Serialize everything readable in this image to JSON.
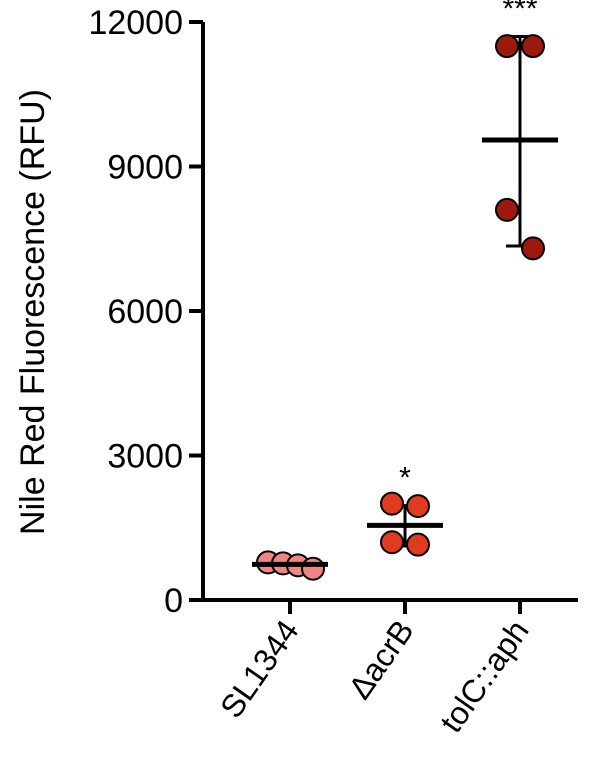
{
  "chart_data": {
    "type": "scatter",
    "ylabel": "Nile Red Fluorescence (RFU)",
    "ylim": [
      0,
      12000
    ],
    "yticks": [
      0,
      3000,
      6000,
      9000,
      12000
    ],
    "ytick_labels": [
      "0",
      "3000",
      "6000",
      "9000",
      "12000"
    ],
    "categories": [
      "SL1344",
      "ΔacrB",
      "tolC::aph"
    ],
    "groups": [
      {
        "category": "SL1344",
        "points": [
          780,
          760,
          720,
          650
        ],
        "mean": 740,
        "error": [
          680,
          800
        ],
        "significance": "",
        "color": "#f08585"
      },
      {
        "category": "ΔacrB",
        "points": [
          2000,
          1950,
          1200,
          1150
        ],
        "mean": 1550,
        "error": [
          1120,
          1960
        ],
        "significance": "*",
        "color": "#e03a1f"
      },
      {
        "category": "tolC::aph",
        "points": [
          11500,
          11500,
          8100,
          7300
        ],
        "mean": 9550,
        "error": [
          7350,
          11700
        ],
        "significance": "***",
        "color": "#9b1a0d"
      }
    ]
  }
}
